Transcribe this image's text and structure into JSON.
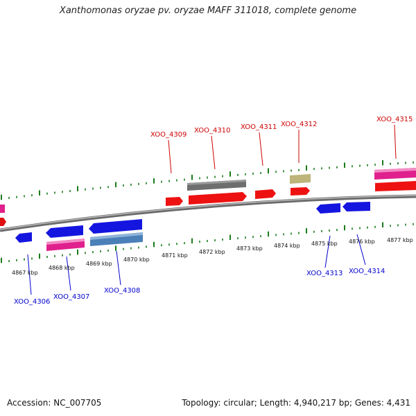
{
  "title": "Xanthomonas oryzae pv. oryzae MAFF 311018, complete genome",
  "footer": {
    "accession": "Accession: NC_007705",
    "summary": "Topology: circular; Length: 4,940,217 bp; Genes: 4,431"
  },
  "colors": {
    "forward_label": "#cc0000",
    "reverse_label": "#0000cc",
    "tick": "#1a7a1a",
    "backbone": "#888888"
  },
  "scale_ticks": [
    "4867 kbp",
    "4868 kbp",
    "4869 kbp",
    "4870 kbp",
    "4871 kbp",
    "4872 kbp",
    "4873 kbp",
    "4874 kbp",
    "4875 kbp",
    "4876 kbp",
    "4877 kbp"
  ],
  "gene_labels_forward": [
    "XOO_4309",
    "XOO_4310",
    "XOO_4311",
    "XOO_4312",
    "XOO_4315"
  ],
  "gene_labels_reverse": [
    "XOO_4306",
    "XOO_4307",
    "XOO_4308",
    "XOO_4313",
    "XOO_4314"
  ]
}
